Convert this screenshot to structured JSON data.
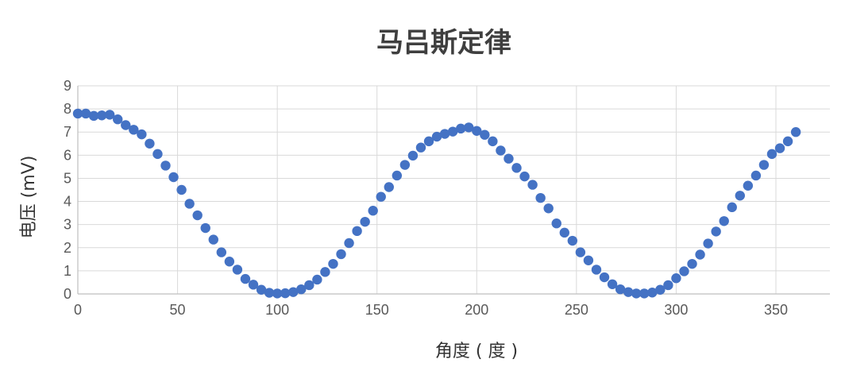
{
  "chart_data": {
    "type": "scatter",
    "title": "马吕斯定律",
    "xlabel": "角度 ( 度 )",
    "ylabel": "电压 (mV)",
    "xlim": [
      0,
      360
    ],
    "ylim": [
      0,
      9
    ],
    "xticks": [
      0,
      50,
      100,
      150,
      200,
      250,
      300,
      350
    ],
    "yticks": [
      0,
      1,
      2,
      3,
      4,
      5,
      6,
      7,
      8,
      9
    ],
    "grid": true,
    "legend": "none",
    "marker_color": "#4472C4",
    "series": [
      {
        "points": [
          [
            0,
            7.8
          ],
          [
            4,
            7.8
          ],
          [
            8,
            7.7
          ],
          [
            12,
            7.72
          ],
          [
            16,
            7.75
          ],
          [
            20,
            7.55
          ],
          [
            24,
            7.3
          ],
          [
            28,
            7.1
          ],
          [
            32,
            6.9
          ],
          [
            36,
            6.5
          ],
          [
            40,
            6.05
          ],
          [
            44,
            5.55
          ],
          [
            48,
            5.05
          ],
          [
            52,
            4.5
          ],
          [
            56,
            3.9
          ],
          [
            60,
            3.4
          ],
          [
            64,
            2.85
          ],
          [
            68,
            2.35
          ],
          [
            72,
            1.8
          ],
          [
            76,
            1.4
          ],
          [
            80,
            1.05
          ],
          [
            84,
            0.65
          ],
          [
            88,
            0.4
          ],
          [
            92,
            0.18
          ],
          [
            96,
            0.05
          ],
          [
            100,
            0.02
          ],
          [
            104,
            0.03
          ],
          [
            108,
            0.08
          ],
          [
            112,
            0.2
          ],
          [
            116,
            0.38
          ],
          [
            120,
            0.62
          ],
          [
            124,
            0.95
          ],
          [
            128,
            1.3
          ],
          [
            132,
            1.72
          ],
          [
            136,
            2.2
          ],
          [
            140,
            2.72
          ],
          [
            144,
            3.12
          ],
          [
            148,
            3.6
          ],
          [
            152,
            4.2
          ],
          [
            156,
            4.62
          ],
          [
            160,
            5.12
          ],
          [
            164,
            5.58
          ],
          [
            168,
            5.98
          ],
          [
            172,
            6.33
          ],
          [
            176,
            6.6
          ],
          [
            180,
            6.8
          ],
          [
            184,
            6.92
          ],
          [
            188,
            7.02
          ],
          [
            192,
            7.15
          ],
          [
            196,
            7.2
          ],
          [
            200,
            7.05
          ],
          [
            204,
            6.88
          ],
          [
            208,
            6.6
          ],
          [
            212,
            6.2
          ],
          [
            216,
            5.85
          ],
          [
            220,
            5.45
          ],
          [
            224,
            5.08
          ],
          [
            228,
            4.72
          ],
          [
            232,
            4.15
          ],
          [
            236,
            3.7
          ],
          [
            240,
            3.05
          ],
          [
            244,
            2.65
          ],
          [
            248,
            2.3
          ],
          [
            252,
            1.8
          ],
          [
            256,
            1.45
          ],
          [
            260,
            1.05
          ],
          [
            264,
            0.72
          ],
          [
            268,
            0.42
          ],
          [
            272,
            0.2
          ],
          [
            276,
            0.08
          ],
          [
            280,
            0.02
          ],
          [
            284,
            0.02
          ],
          [
            288,
            0.06
          ],
          [
            292,
            0.18
          ],
          [
            296,
            0.38
          ],
          [
            300,
            0.68
          ],
          [
            304,
            0.98
          ],
          [
            308,
            1.3
          ],
          [
            312,
            1.7
          ],
          [
            316,
            2.18
          ],
          [
            320,
            2.7
          ],
          [
            324,
            3.15
          ],
          [
            328,
            3.75
          ],
          [
            332,
            4.25
          ],
          [
            336,
            4.68
          ],
          [
            340,
            5.12
          ],
          [
            344,
            5.58
          ],
          [
            348,
            6.05
          ],
          [
            352,
            6.3
          ],
          [
            356,
            6.6
          ],
          [
            360,
            7.0
          ]
        ]
      }
    ]
  }
}
